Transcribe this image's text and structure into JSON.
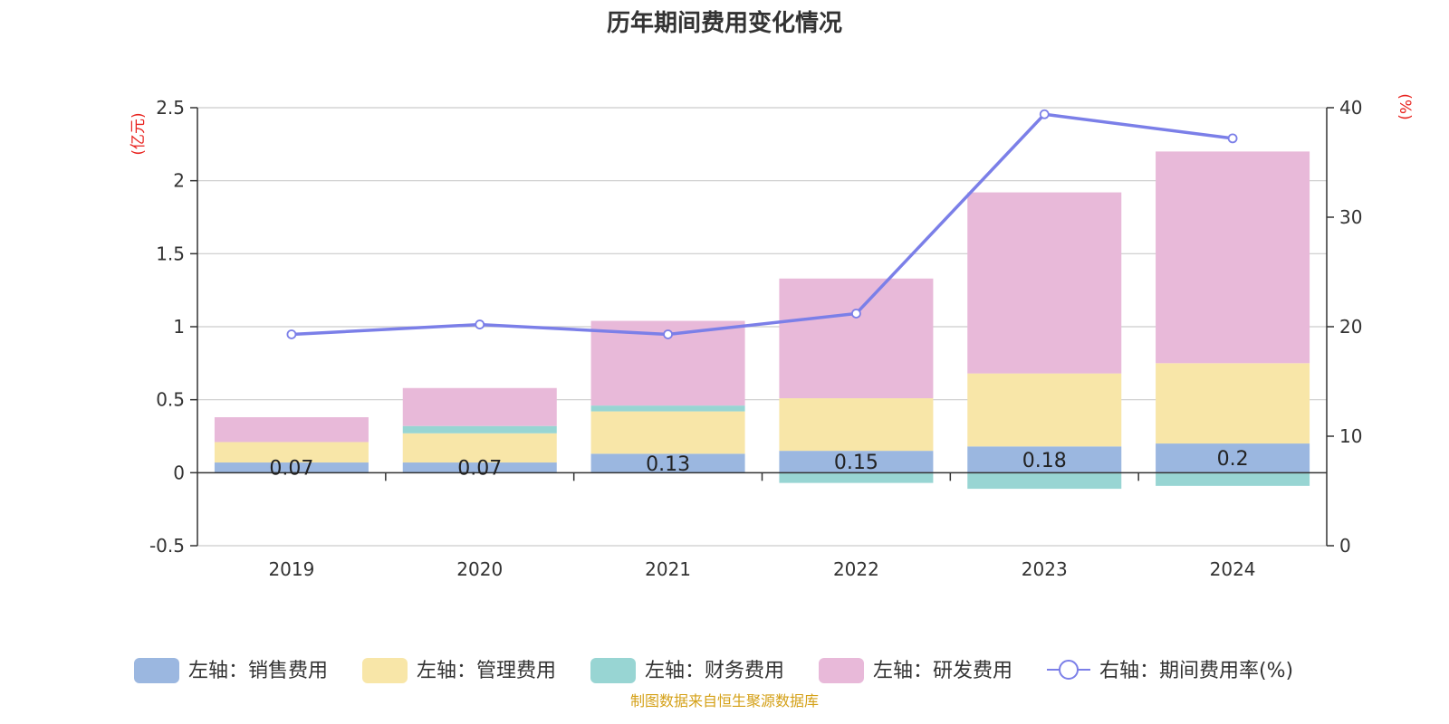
{
  "chart_data": {
    "type": "bar",
    "title": "历年期间费用变化情况",
    "source": "制图数据来自恒生聚源数据库",
    "left_axis_unit": "(亿元)",
    "right_axis_unit": "(%)",
    "categories": [
      "2019",
      "2020",
      "2021",
      "2022",
      "2023",
      "2024"
    ],
    "left_ylim": [
      -0.5,
      2.5
    ],
    "left_ticks": [
      -0.5,
      0,
      0.5,
      1,
      1.5,
      2,
      2.5
    ],
    "left_tick_labels": [
      "-0.5",
      "0",
      "0.5",
      "1",
      "1.5",
      "2",
      "2.5"
    ],
    "right_ylim": [
      0,
      40
    ],
    "right_ticks": [
      0,
      10,
      20,
      30,
      40
    ],
    "right_tick_labels": [
      "0",
      "10",
      "20",
      "30",
      "40"
    ],
    "grid": true,
    "legend_position": "bottom",
    "series": [
      {
        "name": "左轴：销售费用",
        "kind": "bar",
        "axis": "left",
        "color": "#9bb7e0",
        "values": [
          0.07,
          0.07,
          0.13,
          0.15,
          0.18,
          0.2
        ],
        "labels": [
          "0.07",
          "0.07",
          "0.13",
          "0.15",
          "0.18",
          "0.2"
        ]
      },
      {
        "name": "左轴：管理费用",
        "kind": "bar",
        "axis": "left",
        "color": "#f8e6a8",
        "values": [
          0.14,
          0.2,
          0.29,
          0.36,
          0.5,
          0.55
        ]
      },
      {
        "name": "左轴：财务费用",
        "kind": "bar",
        "axis": "left",
        "color": "#98d5d3",
        "values": [
          0,
          0.05,
          0.04,
          -0.07,
          -0.11,
          -0.09
        ]
      },
      {
        "name": "左轴：研发费用",
        "kind": "bar",
        "axis": "left",
        "color": "#e8b9d9",
        "values": [
          0.17,
          0.26,
          0.58,
          0.82,
          1.24,
          1.45
        ]
      },
      {
        "name": "右轴：期间费用率(%)",
        "kind": "line",
        "axis": "right",
        "color": "#7b7fe8",
        "values": [
          19.3,
          20.2,
          19.3,
          21.2,
          39.4,
          37.2
        ]
      }
    ]
  }
}
